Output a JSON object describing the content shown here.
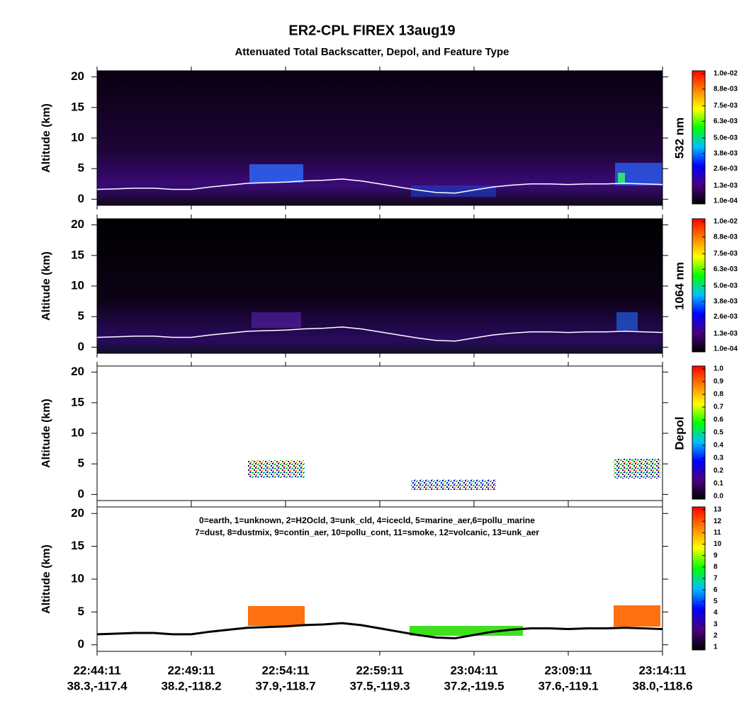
{
  "title": "ER2-CPL FIREX 13aug19",
  "subtitle": "Attenuated Total Backscatter, Depol, and Feature Type",
  "x_axis": {
    "times": [
      "22:44:11",
      "22:49:11",
      "22:54:11",
      "22:59:11",
      "23:04:11",
      "23:09:11",
      "23:14:11"
    ],
    "locations": [
      "38.3,-117.4",
      "38.2,-118.2",
      "37.9,-118.7",
      "37.5,-119.3",
      "37.2,-119.5",
      "37.6,-119.1",
      "38.0,-118.6"
    ]
  },
  "chart_data": [
    {
      "type": "heatmap",
      "ylabel": "Altitude (km)",
      "ylim": [
        -1,
        21
      ],
      "yticks": [
        0,
        5,
        10,
        15,
        20
      ],
      "colorbar": {
        "label": "532 nm",
        "clim": [
          0.0001,
          0.01
        ],
        "colormap": [
          "#000000",
          "#4b0082",
          "#0000ff",
          "#00bfff",
          "#00ff00",
          "#ffff00",
          "#ff8000",
          "#ff0000"
        ],
        "ticks": [
          {
            "value": 0.0001,
            "label": "1.0e-04"
          },
          {
            "value": 0.0013,
            "label": "1.3e-03"
          },
          {
            "value": 0.0026,
            "label": "2.6e-03"
          },
          {
            "value": 0.0038,
            "label": "3.8e-03"
          },
          {
            "value": 0.005,
            "label": "5.0e-03"
          },
          {
            "value": 0.0063,
            "label": "6.3e-03"
          },
          {
            "value": 0.0075,
            "label": "7.5e-03"
          },
          {
            "value": 0.0088,
            "label": "8.8e-03"
          },
          {
            "value": 0.01,
            "label": "1.0e-02"
          }
        ]
      },
      "series": [
        {
          "color": "#ffffff",
          "values": [
            1.6,
            1.7,
            1.8,
            1.8,
            1.6,
            1.6,
            2.0,
            2.3,
            2.6,
            2.7,
            2.8,
            3.0,
            3.1,
            3.3,
            3.0,
            2.5,
            2.0,
            1.5,
            1.1,
            1.0,
            1.5,
            2.0,
            2.3,
            2.5,
            2.5,
            2.4,
            2.5,
            2.5,
            2.6,
            2.5,
            2.4
          ]
        }
      ]
    },
    {
      "type": "heatmap",
      "ylabel": "Altitude (km)",
      "ylim": [
        -1,
        21
      ],
      "yticks": [
        0,
        5,
        10,
        15,
        20
      ],
      "colorbar": {
        "label": "1064 nm",
        "clim": [
          0.0001,
          0.01
        ],
        "colormap": [
          "#000000",
          "#4b0082",
          "#0000ff",
          "#00bfff",
          "#00ff00",
          "#ffff00",
          "#ff8000",
          "#ff0000"
        ],
        "ticks": [
          {
            "value": 0.0001,
            "label": "1.0e-04"
          },
          {
            "value": 0.0013,
            "label": "1.3e-03"
          },
          {
            "value": 0.0026,
            "label": "2.6e-03"
          },
          {
            "value": 0.0038,
            "label": "3.8e-03"
          },
          {
            "value": 0.005,
            "label": "5.0e-03"
          },
          {
            "value": 0.0063,
            "label": "6.3e-03"
          },
          {
            "value": 0.0075,
            "label": "7.5e-03"
          },
          {
            "value": 0.0088,
            "label": "8.8e-03"
          },
          {
            "value": 0.01,
            "label": "1.0e-02"
          }
        ]
      },
      "series": [
        {
          "color": "#ffffff",
          "values": [
            1.6,
            1.7,
            1.8,
            1.8,
            1.6,
            1.6,
            2.0,
            2.3,
            2.6,
            2.7,
            2.8,
            3.0,
            3.1,
            3.3,
            3.0,
            2.5,
            2.0,
            1.5,
            1.1,
            1.0,
            1.5,
            2.0,
            2.3,
            2.5,
            2.5,
            2.4,
            2.5,
            2.5,
            2.6,
            2.5,
            2.4
          ]
        }
      ]
    },
    {
      "type": "heatmap",
      "ylabel": "Altitude (km)",
      "ylim": [
        -1,
        21
      ],
      "yticks": [
        0,
        5,
        10,
        15,
        20
      ],
      "colorbar": {
        "label": "Depol",
        "clim": [
          0,
          1
        ],
        "colormap": [
          "#000000",
          "#4b0082",
          "#0000ff",
          "#00bfff",
          "#00ff00",
          "#ffff00",
          "#ff8000",
          "#ff0000"
        ],
        "ticks": [
          {
            "value": 0,
            "label": "0.0"
          },
          0.1,
          0.2,
          0.3,
          0.4,
          0.5,
          0.6,
          0.7,
          0.8,
          0.9,
          {
            "value": 1,
            "label": "1.0"
          }
        ]
      },
      "series": []
    },
    {
      "type": "heatmap",
      "ylabel": "Altitude (km)",
      "ylim": [
        -1,
        21
      ],
      "yticks": [
        0,
        5,
        10,
        15,
        20
      ],
      "annotations": [
        "0=earth, 1=unknown, 2=H2Ocld, 3=unk_cld, 4=icecld, 5=marine_aer,6=pollu_marine",
        "7=dust, 8=dustmix, 9=contin_aer, 10=pollu_cont, 11=smoke, 12=volcanic, 13=unk_aer"
      ],
      "colorbar": {
        "clim": [
          1,
          13
        ],
        "colormap": [
          "#000000",
          "#4b0082",
          "#0000ff",
          "#00bfff",
          "#00ff00",
          "#ffff00",
          "#ff8000",
          "#ff0000"
        ],
        "ticks": [
          1,
          2,
          3,
          4,
          5,
          6,
          7,
          8,
          9,
          10,
          11,
          12,
          13
        ]
      },
      "series": [
        {
          "color": "#000000",
          "values": [
            1.6,
            1.7,
            1.8,
            1.8,
            1.6,
            1.6,
            2.0,
            2.3,
            2.6,
            2.7,
            2.8,
            3.0,
            3.1,
            3.3,
            3.0,
            2.5,
            2.0,
            1.5,
            1.1,
            1.0,
            1.5,
            2.0,
            2.3,
            2.5,
            2.5,
            2.4,
            2.5,
            2.5,
            2.6,
            2.5,
            2.4
          ]
        }
      ]
    }
  ]
}
